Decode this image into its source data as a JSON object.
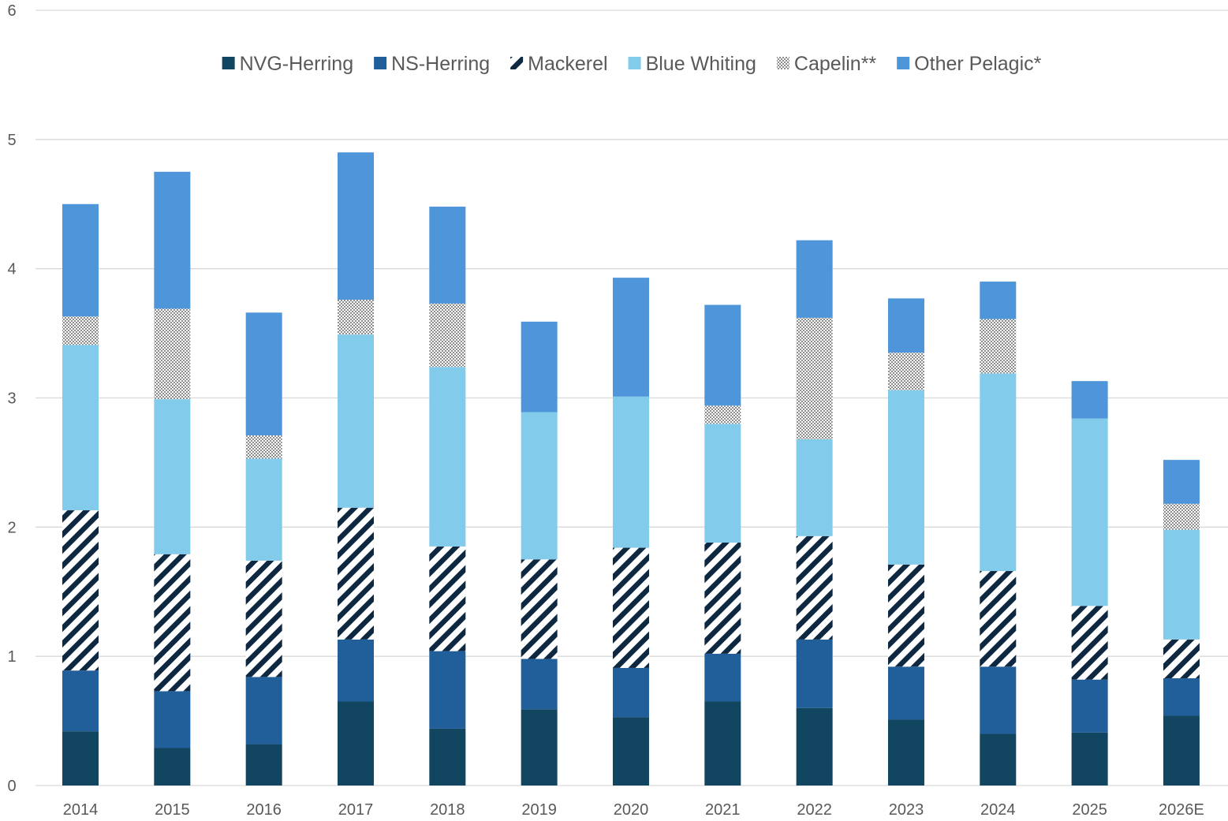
{
  "chart_data": {
    "type": "bar",
    "stacked": true,
    "title": "",
    "xlabel": "",
    "ylabel": "",
    "ylim": [
      0,
      6
    ],
    "yticks": [
      0,
      1,
      2,
      3,
      4,
      5,
      6
    ],
    "grid": true,
    "legend_position": "top",
    "categories": [
      "2014",
      "2015",
      "2016",
      "2017",
      "2018",
      "2019",
      "2020",
      "2021",
      "2022",
      "2023",
      "2024",
      "2025",
      "2026E"
    ],
    "series": [
      {
        "name": "NVG-Herring",
        "color": "#124660",
        "pattern": "solid",
        "values": [
          0.42,
          0.29,
          0.32,
          0.65,
          0.44,
          0.59,
          0.53,
          0.65,
          0.6,
          0.51,
          0.4,
          0.41,
          0.54
        ]
      },
      {
        "name": "NS-Herring",
        "color": "#215f9a",
        "pattern": "solid",
        "values": [
          0.47,
          0.44,
          0.52,
          0.48,
          0.6,
          0.39,
          0.38,
          0.37,
          0.53,
          0.41,
          0.52,
          0.41,
          0.29
        ]
      },
      {
        "name": "Mackerel",
        "color": "#0e2841",
        "pattern": "diagonal-stripes",
        "values": [
          1.24,
          1.06,
          0.9,
          1.02,
          0.81,
          0.77,
          0.93,
          0.86,
          0.8,
          0.79,
          0.74,
          0.57,
          0.3
        ]
      },
      {
        "name": "Blue Whiting",
        "color": "#83cbeb",
        "pattern": "solid",
        "values": [
          1.28,
          1.2,
          0.79,
          1.34,
          1.39,
          1.14,
          1.17,
          0.92,
          0.75,
          1.35,
          1.53,
          1.45,
          0.85
        ]
      },
      {
        "name": "Capelin**",
        "color": "#a6a6a6",
        "pattern": "dots",
        "values": [
          0.22,
          0.7,
          0.18,
          0.27,
          0.49,
          0.0,
          0.0,
          0.14,
          0.94,
          0.29,
          0.42,
          0.0,
          0.2
        ]
      },
      {
        "name": "Other Pelagic*",
        "color": "#4e95d9",
        "pattern": "solid",
        "values": [
          0.87,
          1.06,
          0.95,
          1.14,
          0.75,
          0.7,
          0.92,
          0.78,
          0.6,
          0.42,
          0.29,
          0.29,
          0.34
        ]
      }
    ]
  }
}
